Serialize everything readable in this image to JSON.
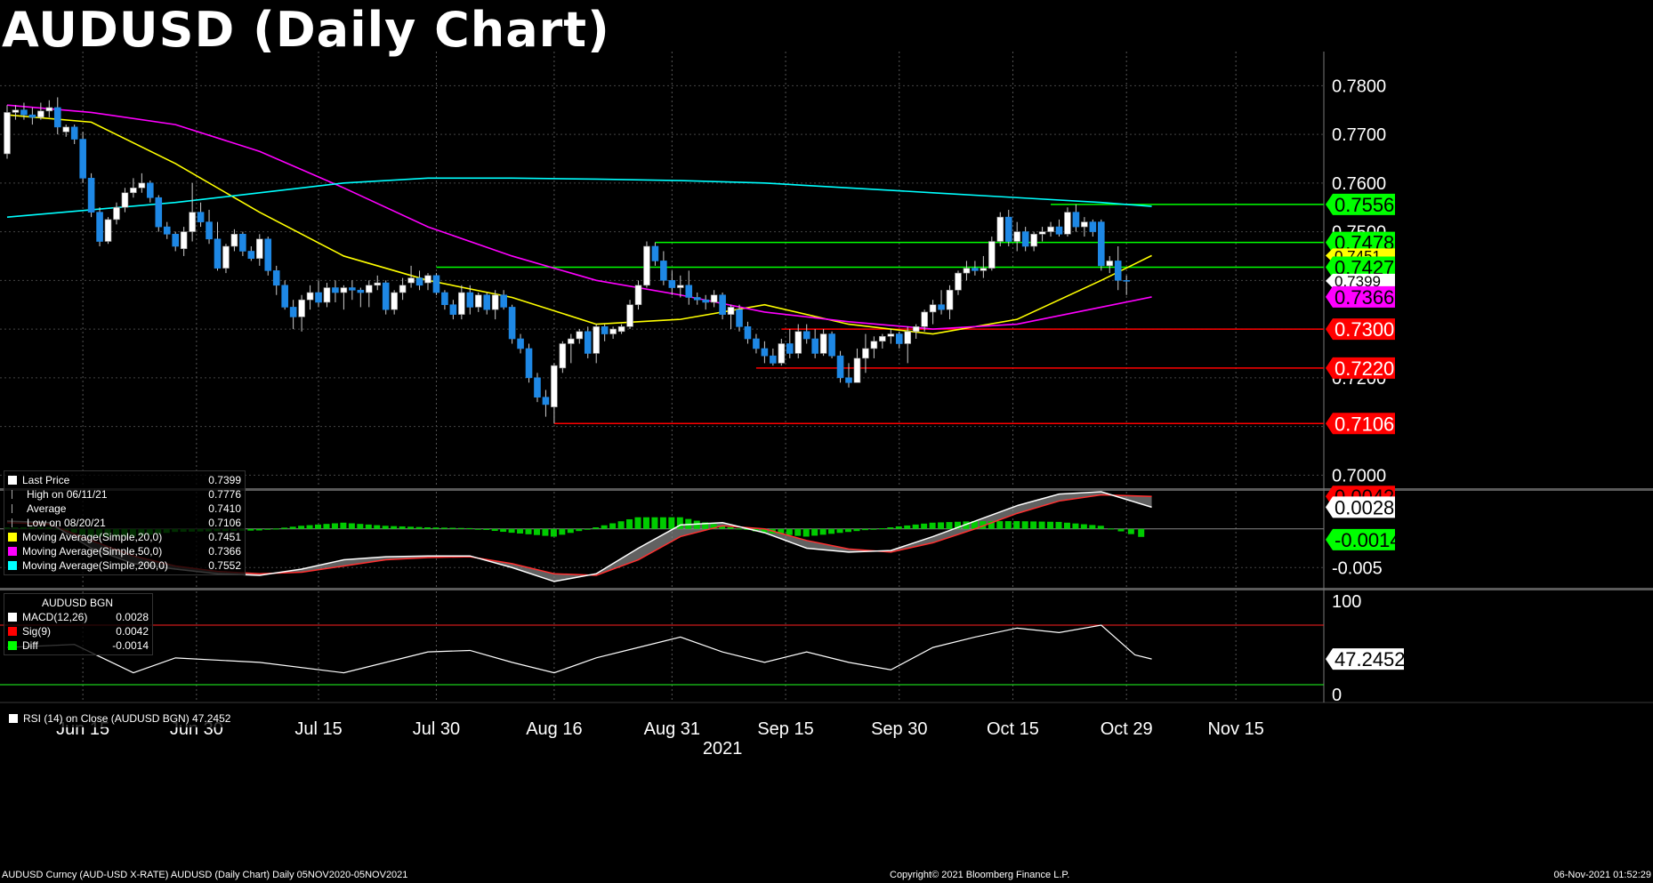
{
  "title": "AUDUSD (Daily Chart)",
  "chart_data": {
    "type": "candlestick",
    "x_ticks": [
      "Jun 15",
      "Jun 30",
      "Jul 15",
      "Jul 30",
      "Aug 16",
      "Aug 31",
      "Sep 15",
      "Sep 30",
      "Oct 15",
      "Oct 29",
      "Nov 15"
    ],
    "year_label": "2021",
    "price_axis": {
      "ylim": [
        0.6975,
        0.787
      ],
      "ticks": [
        "0.7800",
        "0.7700",
        "0.7600",
        "0.7500",
        "0.7200",
        "0.7000"
      ]
    },
    "candles": [
      [
        0.766,
        0.776,
        0.765,
        0.7745
      ],
      [
        0.7745,
        0.776,
        0.773,
        0.775
      ],
      [
        0.775,
        0.7765,
        0.773,
        0.774
      ],
      [
        0.774,
        0.7755,
        0.772,
        0.7735
      ],
      [
        0.7735,
        0.7765,
        0.773,
        0.7748
      ],
      [
        0.7748,
        0.777,
        0.7735,
        0.7755
      ],
      [
        0.7755,
        0.7776,
        0.77,
        0.7715
      ],
      [
        0.7705,
        0.772,
        0.7695,
        0.7715
      ],
      [
        0.7715,
        0.772,
        0.768,
        0.769
      ],
      [
        0.769,
        0.7705,
        0.76,
        0.761
      ],
      [
        0.761,
        0.762,
        0.753,
        0.754
      ],
      [
        0.754,
        0.755,
        0.747,
        0.748
      ],
      [
        0.748,
        0.753,
        0.7475,
        0.7525
      ],
      [
        0.7525,
        0.756,
        0.7515,
        0.755
      ],
      [
        0.755,
        0.759,
        0.754,
        0.758
      ],
      [
        0.758,
        0.761,
        0.757,
        0.759
      ],
      [
        0.759,
        0.762,
        0.758,
        0.76
      ],
      [
        0.76,
        0.7605,
        0.756,
        0.757
      ],
      [
        0.757,
        0.7575,
        0.75,
        0.751
      ],
      [
        0.751,
        0.752,
        0.7485,
        0.7495
      ],
      [
        0.7495,
        0.75,
        0.746,
        0.747
      ],
      [
        0.7465,
        0.751,
        0.745,
        0.75
      ],
      [
        0.75,
        0.76,
        0.748,
        0.754
      ],
      [
        0.754,
        0.756,
        0.751,
        0.752
      ],
      [
        0.752,
        0.7545,
        0.7475,
        0.7485
      ],
      [
        0.7485,
        0.752,
        0.742,
        0.7425
      ],
      [
        0.7425,
        0.7475,
        0.7415,
        0.747
      ],
      [
        0.747,
        0.7505,
        0.746,
        0.7495
      ],
      [
        0.7495,
        0.75,
        0.745,
        0.746
      ],
      [
        0.746,
        0.747,
        0.744,
        0.7445
      ],
      [
        0.7445,
        0.7495,
        0.743,
        0.7485
      ],
      [
        0.7485,
        0.749,
        0.741,
        0.742
      ],
      [
        0.742,
        0.743,
        0.737,
        0.739
      ],
      [
        0.739,
        0.74,
        0.734,
        0.7345
      ],
      [
        0.7345,
        0.736,
        0.73,
        0.7325
      ],
      [
        0.7325,
        0.737,
        0.7295,
        0.736
      ],
      [
        0.736,
        0.739,
        0.734,
        0.7375
      ],
      [
        0.7375,
        0.74,
        0.7345,
        0.7355
      ],
      [
        0.7355,
        0.7395,
        0.7345,
        0.7385
      ],
      [
        0.7385,
        0.74,
        0.7355,
        0.7375
      ],
      [
        0.7375,
        0.739,
        0.734,
        0.7385
      ],
      [
        0.7385,
        0.74,
        0.736,
        0.738
      ],
      [
        0.738,
        0.7385,
        0.7345,
        0.7375
      ],
      [
        0.7375,
        0.74,
        0.7345,
        0.739
      ],
      [
        0.739,
        0.741,
        0.738,
        0.7395
      ],
      [
        0.7395,
        0.74,
        0.733,
        0.734
      ],
      [
        0.734,
        0.738,
        0.733,
        0.7375
      ],
      [
        0.7375,
        0.7405,
        0.736,
        0.739
      ],
      [
        0.7395,
        0.743,
        0.7385,
        0.7405
      ],
      [
        0.7405,
        0.742,
        0.738,
        0.739
      ],
      [
        0.7395,
        0.7415,
        0.738,
        0.741
      ],
      [
        0.741,
        0.7415,
        0.737,
        0.7375
      ],
      [
        0.7375,
        0.738,
        0.734,
        0.735
      ],
      [
        0.735,
        0.736,
        0.732,
        0.733
      ],
      [
        0.733,
        0.739,
        0.732,
        0.7375
      ],
      [
        0.7375,
        0.739,
        0.733,
        0.7345
      ],
      [
        0.7345,
        0.7375,
        0.7335,
        0.737
      ],
      [
        0.737,
        0.7375,
        0.733,
        0.734
      ],
      [
        0.734,
        0.738,
        0.732,
        0.737
      ],
      [
        0.737,
        0.738,
        0.734,
        0.7345
      ],
      [
        0.7345,
        0.735,
        0.727,
        0.728
      ],
      [
        0.728,
        0.729,
        0.725,
        0.726
      ],
      [
        0.726,
        0.727,
        0.719,
        0.72
      ],
      [
        0.72,
        0.721,
        0.715,
        0.716
      ],
      [
        0.716,
        0.7175,
        0.712,
        0.7145
      ],
      [
        0.714,
        0.723,
        0.7106,
        0.7225
      ],
      [
        0.722,
        0.7275,
        0.721,
        0.727
      ],
      [
        0.727,
        0.729,
        0.723,
        0.728
      ],
      [
        0.728,
        0.73,
        0.727,
        0.7295
      ],
      [
        0.7295,
        0.7305,
        0.724,
        0.725
      ],
      [
        0.725,
        0.731,
        0.723,
        0.7305
      ],
      [
        0.7305,
        0.731,
        0.7275,
        0.729
      ],
      [
        0.729,
        0.7305,
        0.728,
        0.73
      ],
      [
        0.7295,
        0.731,
        0.729,
        0.7305
      ],
      [
        0.7305,
        0.736,
        0.73,
        0.735
      ],
      [
        0.735,
        0.74,
        0.734,
        0.739
      ],
      [
        0.739,
        0.748,
        0.7385,
        0.747
      ],
      [
        0.747,
        0.7478,
        0.743,
        0.744
      ],
      [
        0.744,
        0.746,
        0.739,
        0.74
      ],
      [
        0.74,
        0.742,
        0.737,
        0.7385
      ],
      [
        0.7385,
        0.741,
        0.7365,
        0.739
      ],
      [
        0.739,
        0.742,
        0.735,
        0.7365
      ],
      [
        0.7365,
        0.7375,
        0.735,
        0.736
      ],
      [
        0.736,
        0.737,
        0.734,
        0.7355
      ],
      [
        0.7355,
        0.738,
        0.7345,
        0.737
      ],
      [
        0.737,
        0.7375,
        0.732,
        0.733
      ],
      [
        0.733,
        0.735,
        0.73,
        0.7345
      ],
      [
        0.734,
        0.735,
        0.7295,
        0.7305
      ],
      [
        0.7305,
        0.7315,
        0.727,
        0.728
      ],
      [
        0.728,
        0.729,
        0.725,
        0.726
      ],
      [
        0.726,
        0.7275,
        0.723,
        0.7245
      ],
      [
        0.7245,
        0.726,
        0.7225,
        0.723
      ],
      [
        0.723,
        0.728,
        0.7225,
        0.727
      ],
      [
        0.727,
        0.73,
        0.724,
        0.725
      ],
      [
        0.725,
        0.731,
        0.724,
        0.7295
      ],
      [
        0.7295,
        0.731,
        0.727,
        0.728
      ],
      [
        0.728,
        0.73,
        0.724,
        0.725
      ],
      [
        0.725,
        0.73,
        0.7245,
        0.729
      ],
      [
        0.729,
        0.7295,
        0.724,
        0.7245
      ],
      [
        0.7245,
        0.7255,
        0.719,
        0.72
      ],
      [
        0.72,
        0.723,
        0.718,
        0.719
      ],
      [
        0.719,
        0.726,
        0.719,
        0.724
      ],
      [
        0.724,
        0.729,
        0.721,
        0.726
      ],
      [
        0.726,
        0.7285,
        0.724,
        0.7275
      ],
      [
        0.7275,
        0.729,
        0.726,
        0.7285
      ],
      [
        0.7285,
        0.73,
        0.727,
        0.729
      ],
      [
        0.729,
        0.7295,
        0.726,
        0.727
      ],
      [
        0.727,
        0.7305,
        0.723,
        0.7295
      ],
      [
        0.7295,
        0.731,
        0.728,
        0.7305
      ],
      [
        0.7305,
        0.734,
        0.7295,
        0.7335
      ],
      [
        0.7335,
        0.736,
        0.731,
        0.735
      ],
      [
        0.735,
        0.738,
        0.733,
        0.734
      ],
      [
        0.734,
        0.739,
        0.732,
        0.738
      ],
      [
        0.738,
        0.742,
        0.737,
        0.7415
      ],
      [
        0.7415,
        0.744,
        0.74,
        0.7425
      ],
      [
        0.7425,
        0.744,
        0.741,
        0.742
      ],
      [
        0.742,
        0.745,
        0.7405,
        0.7425
      ],
      [
        0.7425,
        0.749,
        0.742,
        0.748
      ],
      [
        0.748,
        0.754,
        0.747,
        0.753
      ],
      [
        0.753,
        0.7545,
        0.747,
        0.748
      ],
      [
        0.748,
        0.752,
        0.746,
        0.75
      ],
      [
        0.75,
        0.751,
        0.746,
        0.747
      ],
      [
        0.747,
        0.75,
        0.746,
        0.7495
      ],
      [
        0.7495,
        0.751,
        0.748,
        0.75
      ],
      [
        0.75,
        0.752,
        0.749,
        0.751
      ],
      [
        0.751,
        0.7525,
        0.749,
        0.7495
      ],
      [
        0.7495,
        0.755,
        0.749,
        0.754
      ],
      [
        0.754,
        0.7556,
        0.75,
        0.751
      ],
      [
        0.751,
        0.753,
        0.749,
        0.752
      ],
      [
        0.752,
        0.7525,
        0.749,
        0.75
      ],
      [
        0.752,
        0.7525,
        0.742,
        0.743
      ],
      [
        0.743,
        0.745,
        0.7415,
        0.744
      ],
      [
        0.744,
        0.747,
        0.738,
        0.74
      ],
      [
        0.74,
        0.741,
        0.737,
        0.7399
      ]
    ],
    "moving_averages": [
      {
        "name": "Moving Average(Simple,20,0)",
        "color": "#ffff00",
        "x_index": [
          0,
          10,
          20,
          30,
          40,
          50,
          60,
          70,
          80,
          90,
          100,
          110,
          120,
          130,
          136
        ],
        "values": [
          0.774,
          0.7725,
          0.764,
          0.754,
          0.745,
          0.74,
          0.7365,
          0.731,
          0.732,
          0.735,
          0.731,
          0.729,
          0.732,
          0.74,
          0.7451
        ]
      },
      {
        "name": "Moving Average(Simple,50,0)",
        "color": "#ff00ff",
        "x_index": [
          0,
          10,
          20,
          30,
          40,
          50,
          60,
          70,
          80,
          90,
          100,
          110,
          120,
          130,
          136
        ],
        "values": [
          0.776,
          0.7745,
          0.772,
          0.7665,
          0.759,
          0.751,
          0.745,
          0.74,
          0.737,
          0.7335,
          0.7315,
          0.73,
          0.731,
          0.7345,
          0.7366
        ]
      },
      {
        "name": "Moving Average(Simple,200,0)",
        "color": "#00ffff",
        "x_index": [
          0,
          10,
          20,
          30,
          40,
          50,
          60,
          70,
          80,
          90,
          100,
          110,
          120,
          130,
          136
        ],
        "values": [
          0.753,
          0.7545,
          0.756,
          0.758,
          0.76,
          0.761,
          0.761,
          0.7608,
          0.7605,
          0.76,
          0.759,
          0.758,
          0.757,
          0.756,
          0.7552
        ]
      }
    ],
    "resistance_lines": [
      {
        "value": 0.7556,
        "color": "#00ff00",
        "x_start_index": 124
      },
      {
        "value": 0.7478,
        "color": "#00ff00",
        "x_start_index": 77
      },
      {
        "value": 0.7427,
        "color": "#00ff00",
        "x_start_index": 51
      }
    ],
    "support_lines": [
      {
        "value": 0.73,
        "color": "#ff0000",
        "x_start_index": 92
      },
      {
        "value": 0.722,
        "color": "#ff0000",
        "x_start_index": 89
      },
      {
        "value": 0.7106,
        "color": "#ff0000",
        "x_start_index": 65
      }
    ],
    "price_tags": [
      {
        "label": "0.7556",
        "value": 0.7556,
        "bg": "#00ff00",
        "fg": "#000000"
      },
      {
        "label": "0.7478",
        "value": 0.7478,
        "bg": "#00ff00",
        "fg": "#000000"
      },
      {
        "label": "0.7451",
        "value": 0.7451,
        "bg": "#ffff00",
        "fg": "#000000"
      },
      {
        "label": "0.7427",
        "value": 0.7427,
        "bg": "#00ff00",
        "fg": "#000000"
      },
      {
        "label": "0.7399",
        "value": 0.7399,
        "bg": "#ffffff",
        "fg": "#000000"
      },
      {
        "label": "0.7366",
        "value": 0.7366,
        "bg": "#ff00ff",
        "fg": "#000000"
      },
      {
        "label": "0.7300",
        "value": 0.73,
        "bg": "#ff0000",
        "fg": "#ffffff"
      },
      {
        "label": "0.7220",
        "value": 0.722,
        "bg": "#ff0000",
        "fg": "#ffffff"
      },
      {
        "label": "0.7106",
        "value": 0.7106,
        "bg": "#ff0000",
        "fg": "#ffffff"
      }
    ],
    "macd": {
      "ylim": [
        -0.0075,
        0.0048
      ],
      "ticks": [
        "-0.005"
      ],
      "x_index": [
        0,
        5,
        10,
        15,
        20,
        25,
        30,
        35,
        40,
        45,
        50,
        55,
        60,
        65,
        70,
        75,
        80,
        85,
        90,
        95,
        100,
        105,
        110,
        115,
        120,
        125,
        130,
        136
      ],
      "macd": [
        0.001,
        0.0008,
        -0.0025,
        -0.0045,
        -0.0052,
        -0.0058,
        -0.006,
        -0.0052,
        -0.004,
        -0.0036,
        -0.0035,
        -0.0035,
        -0.005,
        -0.0068,
        -0.0058,
        -0.0025,
        0.0005,
        0.0008,
        -0.0005,
        -0.0025,
        -0.003,
        -0.0028,
        -0.001,
        0.001,
        0.003,
        0.0045,
        0.0048,
        0.0028
      ],
      "signal": [
        0.0008,
        0.0006,
        -0.0015,
        -0.0035,
        -0.0048,
        -0.0055,
        -0.0058,
        -0.0056,
        -0.0048,
        -0.004,
        -0.0037,
        -0.0036,
        -0.0045,
        -0.0058,
        -0.006,
        -0.004,
        -0.001,
        0.0004,
        0.0,
        -0.0015,
        -0.0026,
        -0.003,
        -0.0018,
        0.0,
        0.002,
        0.0036,
        0.0044,
        0.0042
      ],
      "diff": [
        0.0002,
        0.0002,
        -0.001,
        -0.001,
        -0.0004,
        -0.0003,
        -0.0002,
        0.0004,
        0.0008,
        0.0004,
        0.0002,
        0.0001,
        -0.0005,
        -0.001,
        0.0002,
        0.0015,
        0.0015,
        0.0004,
        -0.0005,
        -0.001,
        -0.0004,
        0.0002,
        0.0008,
        0.001,
        0.001,
        0.0009,
        0.0004,
        -0.0014
      ],
      "tags": [
        {
          "label": "0.0042",
          "value": 0.0042,
          "bg": "#ff0000",
          "fg": "#000000"
        },
        {
          "label": "0.0028",
          "value": 0.0028,
          "bg": "#ffffff",
          "fg": "#000000"
        },
        {
          "label": "-0.0014",
          "value": -0.0014,
          "bg": "#00ff00",
          "fg": "#000000"
        }
      ]
    },
    "rsi": {
      "ylim": [
        0,
        100
      ],
      "ticks": [
        "100",
        "0"
      ],
      "overbought": 70,
      "oversold": 30,
      "x_index": [
        0,
        8,
        15,
        20,
        30,
        40,
        50,
        55,
        60,
        65,
        70,
        75,
        80,
        85,
        90,
        95,
        100,
        105,
        110,
        115,
        120,
        125,
        130,
        134,
        136
      ],
      "values": [
        55,
        57,
        38,
        48,
        45,
        38,
        52,
        53,
        45,
        38,
        48,
        55,
        62,
        52,
        45,
        52,
        45,
        40,
        55,
        62,
        68,
        65,
        70,
        50,
        47.2452
      ],
      "tag": {
        "label": "47.2452",
        "value": 47.2452,
        "bg": "#ffffff",
        "fg": "#000000"
      }
    }
  },
  "legend_main": {
    "rows": [
      {
        "label": "Last Price",
        "value": "0.7399",
        "color": "#ffffff",
        "glyph": "square"
      },
      {
        "label": "High on 06/11/21",
        "value": "0.7776",
        "color": "#aaaaaa",
        "glyph": "high"
      },
      {
        "label": "Average",
        "value": "0.7410",
        "color": "#aaaaaa",
        "glyph": "avg"
      },
      {
        "label": "Low on 08/20/21",
        "value": "0.7106",
        "color": "#aaaaaa",
        "glyph": "low"
      },
      {
        "label": "Moving Average(Simple,20,0)",
        "value": "0.7451",
        "color": "#ffff00",
        "glyph": "square"
      },
      {
        "label": "Moving Average(Simple,50,0)",
        "value": "0.7366",
        "color": "#ff00ff",
        "glyph": "square"
      },
      {
        "label": "Moving Average(Simple,200,0)",
        "value": "0.7552",
        "color": "#00ffff",
        "glyph": "square"
      }
    ]
  },
  "legend_macd": {
    "header": "AUDUSD BGN",
    "rows": [
      {
        "label": "MACD(12,26)",
        "value": "0.0028",
        "color": "#ffffff"
      },
      {
        "label": "Sig(9)",
        "value": "0.0042",
        "color": "#ff0000"
      },
      {
        "label": "Diff",
        "value": "-0.0014",
        "color": "#00ff00"
      }
    ]
  },
  "legend_rsi": {
    "label": "RSI (14)  on Close (AUDUSD BGN) 47.2452",
    "color": "#ffffff"
  },
  "footer": {
    "left": "AUDUSD Curncy (AUD-USD X-RATE) AUDUSD (Daily Chart)  Daily 05NOV2020-05NOV2021",
    "center": "Copyright© 2021 Bloomberg Finance L.P.",
    "right": "06-Nov-2021 01:52:29"
  }
}
